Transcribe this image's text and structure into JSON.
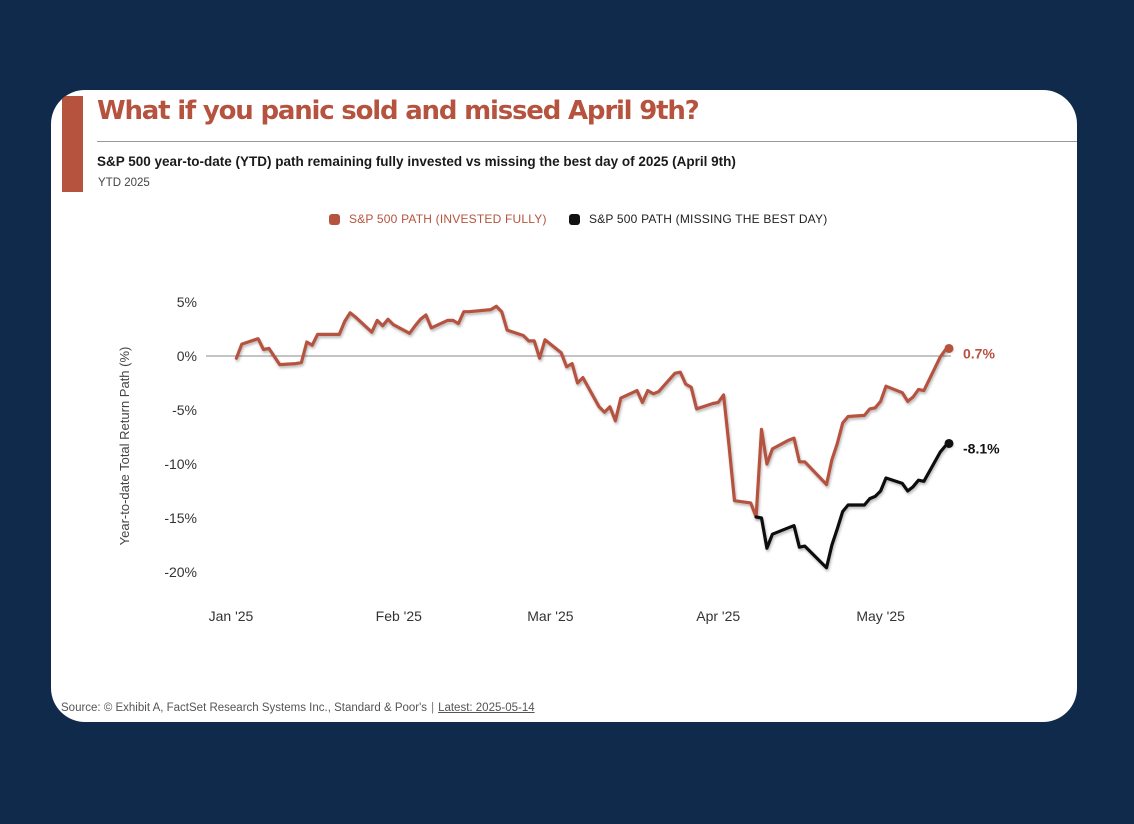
{
  "header": {
    "title": "What if you panic sold and missed April 9th?",
    "subtitle": "S&P 500 year-to-date (YTD) path remaining fully invested vs missing the best day of 2025 (April 9th)",
    "period": "YTD 2025"
  },
  "colors": {
    "invested": "#b5533f",
    "missing": "#111111",
    "background": "#0f2a4a",
    "card": "#ffffff"
  },
  "footer": {
    "source": "Source: © Exhibit A, FactSet Research Systems Inc., Standard & Poor's",
    "separator": "|",
    "latest": "Latest: 2025-05-14"
  },
  "chart_data": {
    "type": "line",
    "title": "What if you panic sold and missed April 9th?",
    "subtitle": "S&P 500 year-to-date (YTD) path remaining fully invested vs missing the best day of 2025 (April 9th)",
    "xlabel": "",
    "ylabel": "Year-to-date Total Return Path (%)",
    "ylim": [
      -20,
      5
    ],
    "y_ticks": [
      "5%",
      "0%",
      "-5%",
      "-10%",
      "-15%",
      "-20%"
    ],
    "x_ticks": [
      {
        "label": "Jan '25",
        "date": "2025-01-01"
      },
      {
        "label": "Feb '25",
        "date": "2025-02-01"
      },
      {
        "label": "Mar '25",
        "date": "2025-03-01"
      },
      {
        "label": "Apr '25",
        "date": "2025-04-01"
      },
      {
        "label": "May '25",
        "date": "2025-05-01"
      }
    ],
    "grid": false,
    "zero_line": true,
    "legend_position": "top-center",
    "series": [
      {
        "name": "S&P 500 PATH (INVESTED FULLY)",
        "end_label": "0.7%",
        "points": [
          [
            "2025-01-02",
            -0.2
          ],
          [
            "2025-01-03",
            1.1
          ],
          [
            "2025-01-06",
            1.6
          ],
          [
            "2025-01-07",
            0.6
          ],
          [
            "2025-01-08",
            0.7
          ],
          [
            "2025-01-10",
            -0.8
          ],
          [
            "2025-01-13",
            -0.7
          ],
          [
            "2025-01-14",
            -0.6
          ],
          [
            "2025-01-15",
            1.3
          ],
          [
            "2025-01-16",
            1.0
          ],
          [
            "2025-01-17",
            2.0
          ],
          [
            "2025-01-21",
            2.0
          ],
          [
            "2025-01-22",
            3.2
          ],
          [
            "2025-01-23",
            4.0
          ],
          [
            "2025-01-24",
            3.6
          ],
          [
            "2025-01-27",
            2.2
          ],
          [
            "2025-01-28",
            3.3
          ],
          [
            "2025-01-29",
            2.8
          ],
          [
            "2025-01-30",
            3.4
          ],
          [
            "2025-01-31",
            2.9
          ],
          [
            "2025-02-03",
            2.1
          ],
          [
            "2025-02-04",
            2.8
          ],
          [
            "2025-02-05",
            3.4
          ],
          [
            "2025-02-06",
            3.8
          ],
          [
            "2025-02-07",
            2.6
          ],
          [
            "2025-02-10",
            3.3
          ],
          [
            "2025-02-11",
            3.3
          ],
          [
            "2025-02-12",
            3.0
          ],
          [
            "2025-02-13",
            4.1
          ],
          [
            "2025-02-14",
            4.1
          ],
          [
            "2025-02-18",
            4.3
          ],
          [
            "2025-02-19",
            4.6
          ],
          [
            "2025-02-20",
            4.1
          ],
          [
            "2025-02-21",
            2.4
          ],
          [
            "2025-02-24",
            1.9
          ],
          [
            "2025-02-25",
            1.4
          ],
          [
            "2025-02-26",
            1.4
          ],
          [
            "2025-02-27",
            -0.2
          ],
          [
            "2025-02-28",
            1.5
          ],
          [
            "2025-03-03",
            0.3
          ],
          [
            "2025-03-04",
            -1.0
          ],
          [
            "2025-03-05",
            -0.7
          ],
          [
            "2025-03-06",
            -2.5
          ],
          [
            "2025-03-07",
            -2.0
          ],
          [
            "2025-03-10",
            -4.7
          ],
          [
            "2025-03-11",
            -5.2
          ],
          [
            "2025-03-12",
            -4.7
          ],
          [
            "2025-03-13",
            -6.0
          ],
          [
            "2025-03-14",
            -3.9
          ],
          [
            "2025-03-17",
            -3.2
          ],
          [
            "2025-03-18",
            -4.3
          ],
          [
            "2025-03-19",
            -3.2
          ],
          [
            "2025-03-20",
            -3.5
          ],
          [
            "2025-03-21",
            -3.3
          ],
          [
            "2025-03-24",
            -1.6
          ],
          [
            "2025-03-25",
            -1.5
          ],
          [
            "2025-03-26",
            -2.6
          ],
          [
            "2025-03-27",
            -2.9
          ],
          [
            "2025-03-28",
            -4.9
          ],
          [
            "2025-03-31",
            -4.4
          ],
          [
            "2025-04-01",
            -4.3
          ],
          [
            "2025-04-02",
            -3.6
          ],
          [
            "2025-04-03",
            -8.3
          ],
          [
            "2025-04-04",
            -13.4
          ],
          [
            "2025-04-07",
            -13.6
          ],
          [
            "2025-04-08",
            -14.9
          ],
          [
            "2025-04-09",
            -6.8
          ],
          [
            "2025-04-10",
            -10.0
          ],
          [
            "2025-04-11",
            -8.6
          ],
          [
            "2025-04-14",
            -7.8
          ],
          [
            "2025-04-15",
            -7.6
          ],
          [
            "2025-04-16",
            -9.8
          ],
          [
            "2025-04-17",
            -9.8
          ],
          [
            "2025-04-21",
            -11.9
          ],
          [
            "2025-04-22",
            -9.6
          ],
          [
            "2025-04-23",
            -8.1
          ],
          [
            "2025-04-24",
            -6.2
          ],
          [
            "2025-04-25",
            -5.6
          ],
          [
            "2025-04-28",
            -5.5
          ],
          [
            "2025-04-29",
            -4.9
          ],
          [
            "2025-04-30",
            -4.8
          ],
          [
            "2025-05-01",
            -4.2
          ],
          [
            "2025-05-02",
            -2.8
          ],
          [
            "2025-05-05",
            -3.4
          ],
          [
            "2025-05-06",
            -4.2
          ],
          [
            "2025-05-07",
            -3.8
          ],
          [
            "2025-05-08",
            -3.1
          ],
          [
            "2025-05-09",
            -3.2
          ],
          [
            "2025-05-12",
            -0.1
          ],
          [
            "2025-05-13",
            0.6
          ],
          [
            "2025-05-14",
            0.7
          ]
        ]
      },
      {
        "name": "S&P 500 PATH (MISSING THE BEST DAY)",
        "end_label": "-8.1%",
        "points": [
          [
            "2025-04-08",
            -14.9
          ],
          [
            "2025-04-09",
            -15.0
          ],
          [
            "2025-04-10",
            -17.8
          ],
          [
            "2025-04-11",
            -16.5
          ],
          [
            "2025-04-14",
            -15.9
          ],
          [
            "2025-04-15",
            -15.7
          ],
          [
            "2025-04-16",
            -17.7
          ],
          [
            "2025-04-17",
            -17.6
          ],
          [
            "2025-04-21",
            -19.6
          ],
          [
            "2025-04-22",
            -17.5
          ],
          [
            "2025-04-23",
            -16.0
          ],
          [
            "2025-04-24",
            -14.4
          ],
          [
            "2025-04-25",
            -13.8
          ],
          [
            "2025-04-28",
            -13.8
          ],
          [
            "2025-04-29",
            -13.2
          ],
          [
            "2025-04-30",
            -13.0
          ],
          [
            "2025-05-01",
            -12.5
          ],
          [
            "2025-05-02",
            -11.3
          ],
          [
            "2025-05-05",
            -11.8
          ],
          [
            "2025-05-06",
            -12.5
          ],
          [
            "2025-05-07",
            -12.1
          ],
          [
            "2025-05-08",
            -11.5
          ],
          [
            "2025-05-09",
            -11.6
          ],
          [
            "2025-05-12",
            -8.9
          ],
          [
            "2025-05-13",
            -8.3
          ],
          [
            "2025-05-14",
            -8.1
          ]
        ]
      }
    ]
  }
}
